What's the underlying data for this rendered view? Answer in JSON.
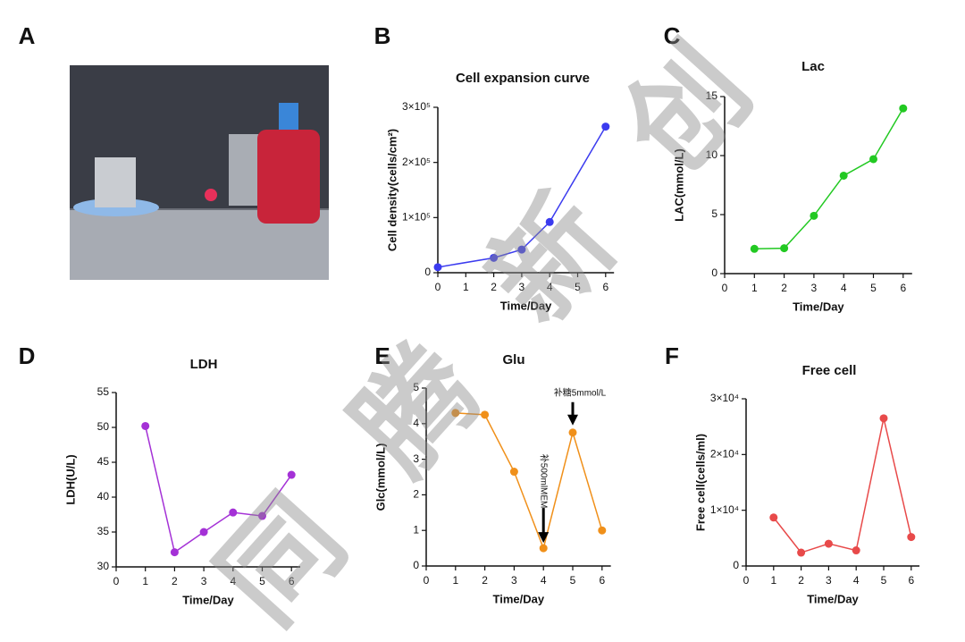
{
  "watermark": "同 腾 新 创",
  "chart_data": [
    {
      "type": "image",
      "label": "A"
    },
    {
      "type": "line",
      "label": "B",
      "title": "Cell expansion curve",
      "x_label": "Time/Day",
      "y_label": "Cell density(cells/cm²)",
      "color": "#3b3bef",
      "x": [
        0,
        2,
        3,
        4,
        6
      ],
      "values": [
        10000,
        27000,
        42000,
        92000,
        265000
      ],
      "xlim": [
        0,
        6.3
      ],
      "xticks": [
        0,
        1,
        2,
        3,
        4,
        5,
        6
      ],
      "ylim": [
        0,
        300000
      ],
      "yticks": [
        0,
        {
          "value": 100000,
          "label": "1×10⁵"
        },
        {
          "value": 200000,
          "label": "2×10⁵"
        },
        {
          "value": 300000,
          "label": "3×10⁵"
        }
      ]
    },
    {
      "type": "line",
      "label": "C",
      "title": "Lac",
      "x_label": "Time/Day",
      "y_label": "LAC(mmol/L)",
      "color": "#22c922",
      "x": [
        1,
        2,
        3,
        4,
        5,
        6
      ],
      "values": [
        2.1,
        2.15,
        4.9,
        8.3,
        9.7,
        14
      ],
      "xlim": [
        0,
        6.3
      ],
      "xticks": [
        0,
        1,
        2,
        3,
        4,
        5,
        6
      ],
      "ylim": [
        0,
        15
      ],
      "yticks": [
        0,
        5,
        10,
        15
      ]
    },
    {
      "type": "line",
      "label": "D",
      "title": "LDH",
      "x_label": "Time/Day",
      "y_label": "LDH(U/L)",
      "color": "#a431d6",
      "x": [
        1,
        2,
        3,
        4,
        5,
        6
      ],
      "values": [
        50.2,
        32.1,
        35.0,
        37.8,
        37.3,
        43.2
      ],
      "xlim": [
        0,
        6.3
      ],
      "xticks": [
        0,
        1,
        2,
        3,
        4,
        5,
        6
      ],
      "ylim": [
        30,
        55
      ],
      "yticks": [
        30,
        35,
        40,
        45,
        50,
        55
      ]
    },
    {
      "type": "line",
      "label": "E",
      "title": "Glu",
      "x_label": "Time/Day",
      "y_label": "Glc(mmol/L)",
      "color": "#f0901a",
      "x": [
        1,
        2,
        3,
        4,
        5,
        6
      ],
      "values": [
        4.3,
        4.25,
        2.65,
        0.5,
        3.75,
        1.0
      ],
      "xlim": [
        0,
        6.3
      ],
      "xticks": [
        0,
        1,
        2,
        3,
        4,
        5,
        6
      ],
      "ylim": [
        0,
        5
      ],
      "yticks": [
        0,
        1,
        2,
        3,
        4,
        5
      ],
      "annotations": [
        "补500mlMEM",
        "补糖5mmol/L"
      ]
    },
    {
      "type": "line",
      "label": "F",
      "title": "Free cell",
      "x_label": "Time/Day",
      "y_label": "Free cell(cells/ml)",
      "color": "#e84a4a",
      "x": [
        1,
        2,
        3,
        4,
        5,
        6
      ],
      "values": [
        8700,
        2400,
        4000,
        2800,
        26500,
        5200
      ],
      "xlim": [
        0,
        6.3
      ],
      "xticks": [
        0,
        1,
        2,
        3,
        4,
        5,
        6
      ],
      "ylim": [
        0,
        30000
      ],
      "yticks": [
        0,
        {
          "value": 10000,
          "label": "1×10⁴"
        },
        {
          "value": 20000,
          "label": "2×10⁴"
        },
        {
          "value": 30000,
          "label": "3×10⁴"
        }
      ]
    }
  ]
}
